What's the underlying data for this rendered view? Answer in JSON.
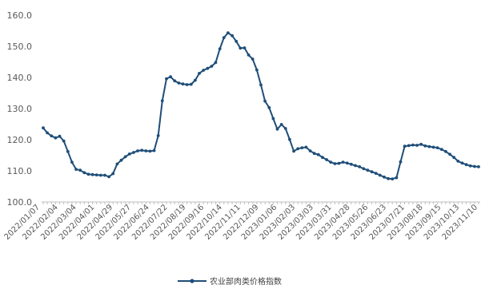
{
  "chart_data": {
    "type": "line",
    "title": "",
    "xlabel": "",
    "ylabel": "",
    "ylim": [
      100,
      160
    ],
    "yticks": [
      "100.0",
      "110.0",
      "120.0",
      "130.0",
      "140.0",
      "150.0",
      "160.0"
    ],
    "grid": false,
    "legend_position": "bottom",
    "x_tick_labels": [
      "2022/01/07",
      "2022/02/04",
      "2022/03/04",
      "2022/04/01",
      "2022/04/29",
      "2022/05/27",
      "2022/06/24",
      "2022/07/22",
      "2022/08/19",
      "2022/09/16",
      "2022/10/14",
      "2022/11/11",
      "2022/12/09",
      "2023/01/06",
      "2023/02/03",
      "2023/03/03",
      "2023/03/31",
      "2023/04/28",
      "2023/05/26",
      "2023/06/23",
      "2023/07/21",
      "2023/08/18",
      "2023/09/15",
      "2023/10/13",
      "2023/11/10"
    ],
    "series": [
      {
        "name": "农业部肉类价格指数",
        "color": "#1f4e79",
        "values": [
          123.8,
          122.2,
          121.2,
          120.6,
          121.1,
          119.6,
          116.2,
          112.8,
          110.5,
          110.2,
          109.4,
          108.9,
          108.8,
          108.7,
          108.6,
          108.6,
          108.1,
          109.1,
          112.2,
          113.4,
          114.5,
          115.4,
          115.9,
          116.4,
          116.6,
          116.4,
          116.3,
          116.5,
          121.3,
          132.5,
          139.6,
          140.2,
          138.9,
          138.2,
          137.9,
          137.7,
          137.8,
          139.1,
          141.3,
          142.3,
          142.9,
          143.6,
          144.8,
          149.2,
          152.8,
          154.3,
          153.4,
          151.6,
          149.4,
          149.5,
          147.2,
          145.9,
          142.4,
          137.6,
          132.4,
          130.3,
          126.8,
          123.4,
          124.9,
          123.6,
          120.1,
          116.3,
          117.1,
          117.4,
          117.6,
          116.4,
          115.6,
          115.2,
          114.3,
          113.6,
          112.8,
          112.3,
          112.4,
          112.8,
          112.5,
          112.1,
          111.7,
          111.3,
          110.7,
          110.2,
          109.7,
          109.2,
          108.6,
          108.0,
          107.5,
          107.4,
          107.8,
          112.9,
          117.9,
          118.1,
          118.3,
          118.2,
          118.5,
          118.0,
          117.8,
          117.6,
          117.4,
          116.9,
          116.2,
          115.3,
          114.3,
          113.1,
          112.5,
          112.0,
          111.6,
          111.4,
          111.3
        ]
      }
    ]
  }
}
